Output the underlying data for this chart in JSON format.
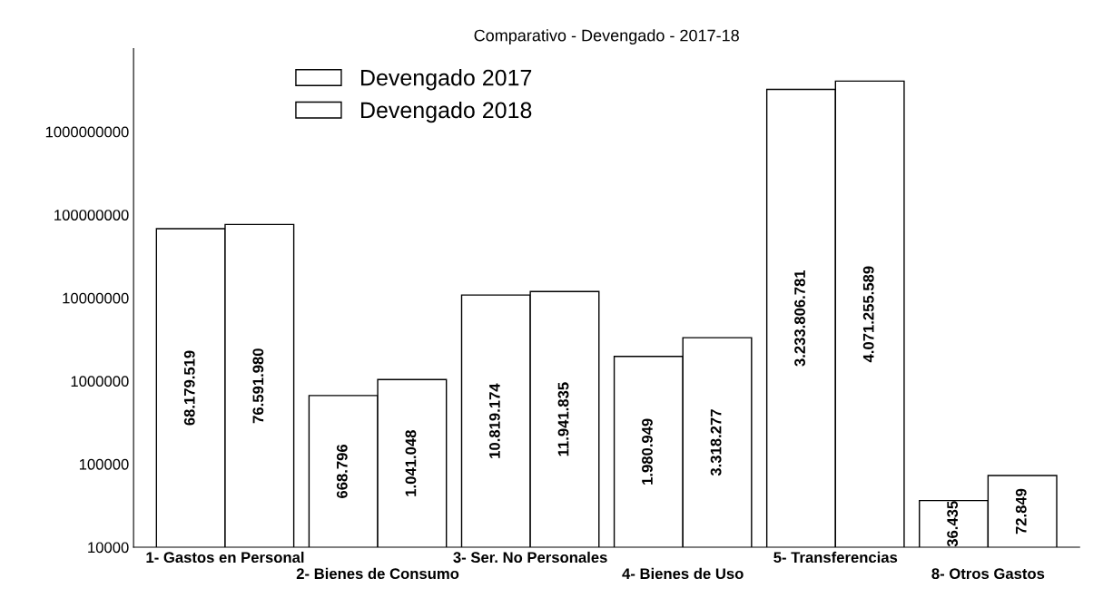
{
  "chart_data": {
    "type": "bar",
    "title": "Comparativo - Devengado - 2017-18",
    "categories": [
      "1- Gastos en Personal",
      "2- Bienes de Consumo",
      "3- Ser. No Personales",
      "4- Bienes de Uso",
      "5- Transferencias",
      "8- Otros Gastos"
    ],
    "series": [
      {
        "name": "Devengado 2017",
        "color": "#ffffff",
        "values": [
          68179519,
          668796,
          10819174,
          1980949,
          3233806781,
          36435
        ],
        "value_labels": [
          "68.179.519",
          "668.796",
          "10.819.174",
          "1.980.949",
          "3.233.806.781",
          "36.435"
        ]
      },
      {
        "name": "Devengado 2018",
        "color": "#ffffff",
        "values": [
          76591980,
          1041048,
          11941835,
          3318277,
          4071255589,
          72849
        ],
        "value_labels": [
          "76.591.980",
          "1.041.048",
          "11.941.835",
          "3.318.277",
          "4.071.255.589",
          "72.849"
        ]
      }
    ],
    "log": true,
    "ylim": [
      10000,
      10000000000
    ],
    "yticks": [
      10000,
      100000,
      1000000,
      10000000,
      100000000,
      1000000000
    ],
    "grid": false,
    "legend": "top left"
  }
}
